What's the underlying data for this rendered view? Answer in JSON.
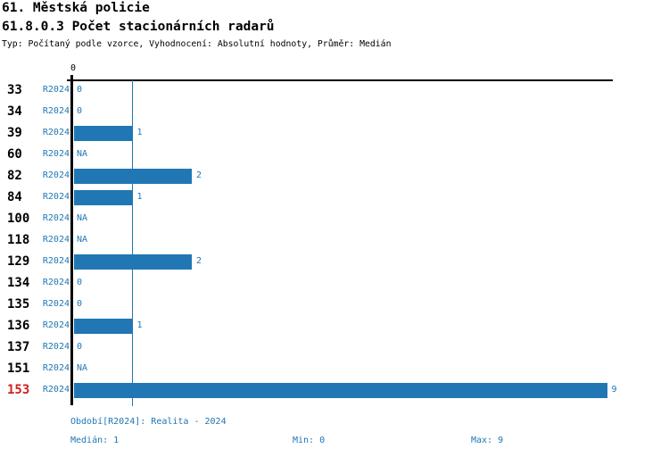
{
  "header": {
    "title": "61. Městská policie",
    "subtitle": "61.8.0.3 Počet stacionárních radarů",
    "meta": "Typ: Počítaný podle vzorce, Vyhodnocení: Absolutní hodnoty, Průměr: Medián"
  },
  "chart_data": {
    "type": "bar",
    "orientation": "horizontal",
    "title": "61.8.0.3 Počet stacionárních radarů",
    "series_name": "R2024",
    "categories": [
      "33",
      "34",
      "39",
      "60",
      "82",
      "84",
      "100",
      "118",
      "129",
      "134",
      "135",
      "136",
      "137",
      "151",
      "153"
    ],
    "values": [
      0,
      0,
      1,
      null,
      2,
      1,
      null,
      null,
      2,
      0,
      0,
      1,
      0,
      null,
      9
    ],
    "value_labels": [
      "0",
      "0",
      "1",
      "NA",
      "2",
      "1",
      "NA",
      "NA",
      "2",
      "0",
      "0",
      "1",
      "0",
      "NA",
      "9"
    ],
    "x_axis_tick_label": "0",
    "xlim": [
      0,
      9.1
    ],
    "grid": false,
    "legend_position": "none",
    "median_value": 1,
    "highlight_category": "153",
    "colors": {
      "bar": "#2077b4",
      "text_blue": "#2077b4",
      "highlight_red": "#cc2020",
      "axis": "#000000"
    }
  },
  "footer": {
    "period_line": "Období[R2024]: Realita - 2024",
    "median_label": "Medián: 1",
    "min_label": "Min: 0",
    "max_label": "Max: 9"
  }
}
